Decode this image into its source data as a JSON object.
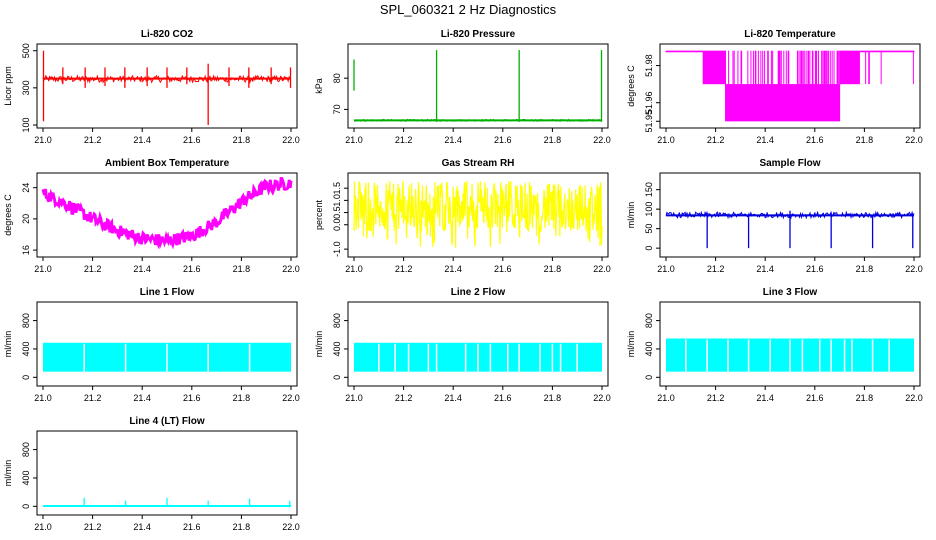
{
  "title": "SPL_060321  2 Hz Diagnostics",
  "chart_data": [
    {
      "type": "line",
      "title": "Li-820 CO2",
      "ylabel": "Licor ppm",
      "color": "#ff0000",
      "xlim": [
        21.0,
        22.0
      ],
      "ylim": [
        100,
        520
      ],
      "xticks": [
        "21.0",
        "21.2",
        "21.4",
        "21.6",
        "21.8",
        "22.0"
      ],
      "yticks": [
        {
          "v": 100,
          "label": "100"
        },
        {
          "v": 300,
          "label": "300"
        },
        {
          "v": 500,
          "label": "500"
        }
      ],
      "baseline": 350,
      "band": [
        330,
        365
      ],
      "spikes": [
        {
          "x": 21.002,
          "lo": 120,
          "hi": 500
        },
        {
          "x": 21.08,
          "lo": 320,
          "hi": 410
        },
        {
          "x": 21.17,
          "lo": 300,
          "hi": 410
        },
        {
          "x": 21.25,
          "lo": 310,
          "hi": 410
        },
        {
          "x": 21.33,
          "lo": 300,
          "hi": 410
        },
        {
          "x": 21.42,
          "lo": 310,
          "hi": 410
        },
        {
          "x": 21.5,
          "lo": 300,
          "hi": 410
        },
        {
          "x": 21.58,
          "lo": 320,
          "hi": 410
        },
        {
          "x": 21.666,
          "lo": 100,
          "hi": 430
        },
        {
          "x": 21.75,
          "lo": 310,
          "hi": 410
        },
        {
          "x": 21.83,
          "lo": 300,
          "hi": 410
        },
        {
          "x": 21.92,
          "lo": 320,
          "hi": 410
        },
        {
          "x": 21.998,
          "lo": 300,
          "hi": 410
        }
      ]
    },
    {
      "type": "line",
      "title": "Li-820 Pressure",
      "ylabel": "kPa",
      "color": "#00b000",
      "xlim": [
        21.0,
        22.0
      ],
      "ylim": [
        65,
        90
      ],
      "xticks": [
        "21.0",
        "21.2",
        "21.4",
        "21.6",
        "21.8",
        "22.0"
      ],
      "yticks": [
        {
          "v": 70,
          "label": "70"
        },
        {
          "v": 80,
          "label": "80"
        }
      ],
      "baseline": 66.5,
      "band": [
        66.2,
        66.8
      ],
      "spikes": [
        {
          "x": 21.0,
          "lo": 76,
          "hi": 86
        },
        {
          "x": 21.333,
          "lo": 66,
          "hi": 89
        },
        {
          "x": 21.666,
          "lo": 66,
          "hi": 89
        },
        {
          "x": 21.998,
          "lo": 66,
          "hi": 89
        }
      ]
    },
    {
      "type": "step-band",
      "title": "Li-820 Temperature",
      "ylabel": "degrees C",
      "color": "#ff00ff",
      "xlim": [
        21.0,
        22.0
      ],
      "ylim": [
        51.948,
        51.99
      ],
      "xticks": [
        "21.0",
        "21.2",
        "21.4",
        "21.6",
        "21.8",
        "22.0"
      ],
      "yticks": [
        {
          "v": 51.95,
          "label": "51.95"
        },
        {
          "v": 51.96,
          "label": "51.96"
        },
        {
          "v": 51.98,
          "label": "51.98"
        }
      ],
      "upper": 51.988,
      "mid": 51.97,
      "lower": 51.95,
      "high_mask": [
        [
          21.0,
          21.15
        ],
        [
          21.78,
          22.0
        ]
      ],
      "mid_mask": [
        [
          21.15,
          21.24
        ],
        [
          21.7,
          21.78
        ]
      ],
      "low_mask": [
        [
          21.24,
          21.7
        ]
      ]
    },
    {
      "type": "line",
      "title": "Ambient Box Temperature",
      "ylabel": "degrees C",
      "color": "#ff00ff",
      "xlim": [
        21.0,
        22.0
      ],
      "ylim": [
        15.5,
        25.5
      ],
      "xticks": [
        "21.0",
        "21.2",
        "21.4",
        "21.6",
        "21.8",
        "22.0"
      ],
      "yticks": [
        {
          "v": 16,
          "label": "16"
        },
        {
          "v": 20,
          "label": "20"
        },
        {
          "v": 24,
          "label": "24"
        }
      ],
      "x": [
        21.0,
        21.1,
        21.2,
        21.3,
        21.4,
        21.5,
        21.6,
        21.7,
        21.8,
        21.9,
        22.0
      ],
      "y": [
        23.3,
        21.8,
        20.0,
        18.5,
        17.5,
        17.2,
        17.8,
        19.6,
        22.2,
        24.2,
        24.6
      ],
      "halfwidth": 0.8
    },
    {
      "type": "noise-band",
      "title": "Gas Stream RH",
      "ylabel": "percent",
      "color": "#ffff00",
      "xlim": [
        21.0,
        22.0
      ],
      "ylim": [
        -1.2,
        2.0
      ],
      "xticks": [
        "21.0",
        "21.2",
        "21.4",
        "21.6",
        "21.8",
        "22.0"
      ],
      "yticks": [
        {
          "v": -1.0,
          "label": "-1.0"
        },
        {
          "v": 0.0,
          "label": "0.0"
        },
        {
          "v": 0.5,
          "label": "0.5"
        },
        {
          "v": 1.0,
          "label": "1.0"
        },
        {
          "v": 1.5,
          "label": "1.5"
        }
      ],
      "core": [
        -0.3,
        1.7
      ],
      "extreme": [
        -1.0,
        1.8
      ]
    },
    {
      "type": "line",
      "title": "Sample Flow",
      "ylabel": "ml/min",
      "color": "#0000dd",
      "xlim": [
        21.0,
        22.0
      ],
      "ylim": [
        -15,
        185
      ],
      "xticks": [
        "21.0",
        "21.2",
        "21.4",
        "21.6",
        "21.8",
        "22.0"
      ],
      "yticks": [
        {
          "v": 0,
          "label": "0"
        },
        {
          "v": 50,
          "label": "50"
        },
        {
          "v": 100,
          "label": "100"
        },
        {
          "v": 150,
          "label": "150"
        }
      ],
      "baseline": 84,
      "band": [
        78,
        92
      ],
      "spikes": [
        {
          "x": 21.166,
          "lo": 0,
          "hi": 85
        },
        {
          "x": 21.333,
          "lo": 0,
          "hi": 85
        },
        {
          "x": 21.5,
          "lo": 0,
          "hi": 96
        },
        {
          "x": 21.666,
          "lo": 0,
          "hi": 85
        },
        {
          "x": 21.833,
          "lo": 0,
          "hi": 85
        },
        {
          "x": 21.995,
          "lo": 0,
          "hi": 85
        }
      ]
    },
    {
      "type": "flow-blocks",
      "title": "Line 1 Flow",
      "ylabel": "ml/min",
      "color": "#00ffff",
      "xlim": [
        21.0,
        22.0
      ],
      "ylim": [
        -80,
        1020
      ],
      "xticks": [
        "21.0",
        "21.2",
        "21.4",
        "21.6",
        "21.8",
        "22.0"
      ],
      "yticks": [
        {
          "v": 0,
          "label": "0"
        },
        {
          "v": 400,
          "label": "400"
        },
        {
          "v": 800,
          "label": "800"
        }
      ],
      "top": 480,
      "bottom": 80,
      "gaps": [
        21.166,
        21.333,
        21.5,
        21.666,
        21.833
      ]
    },
    {
      "type": "flow-blocks",
      "title": "Line 2 Flow",
      "ylabel": "ml/min",
      "color": "#00ffff",
      "xlim": [
        21.0,
        22.0
      ],
      "ylim": [
        -80,
        1020
      ],
      "xticks": [
        "21.0",
        "21.2",
        "21.4",
        "21.6",
        "21.8",
        "22.0"
      ],
      "yticks": [
        {
          "v": 0,
          "label": "0"
        },
        {
          "v": 400,
          "label": "400"
        },
        {
          "v": 800,
          "label": "800"
        }
      ],
      "top": 480,
      "bottom": 80,
      "gaps": [
        21.1,
        21.166,
        21.22,
        21.3,
        21.333,
        21.45,
        21.5,
        21.55,
        21.62,
        21.666,
        21.75,
        21.8,
        21.833,
        21.9
      ]
    },
    {
      "type": "flow-blocks",
      "title": "Line 3 Flow",
      "ylabel": "ml/min",
      "color": "#00ffff",
      "xlim": [
        21.0,
        22.0
      ],
      "ylim": [
        -80,
        1020
      ],
      "xticks": [
        "21.0",
        "21.2",
        "21.4",
        "21.6",
        "21.8",
        "22.0"
      ],
      "yticks": [
        {
          "v": 0,
          "label": "0"
        },
        {
          "v": 400,
          "label": "400"
        },
        {
          "v": 800,
          "label": "800"
        }
      ],
      "top": 540,
      "bottom": 80,
      "gaps": [
        21.08,
        21.166,
        21.25,
        21.333,
        21.42,
        21.5,
        21.55,
        21.62,
        21.666,
        21.72,
        21.75,
        21.833,
        21.9
      ]
    },
    {
      "type": "line",
      "title": "Line 4 (LT) Flow",
      "ylabel": "ml/min",
      "color": "#00ffff",
      "xlim": [
        21.0,
        22.0
      ],
      "ylim": [
        -80,
        1020
      ],
      "xticks": [
        "21.0",
        "21.2",
        "21.4",
        "21.6",
        "21.8",
        "22.0"
      ],
      "yticks": [
        {
          "v": 0,
          "label": "0"
        },
        {
          "v": 400,
          "label": "400"
        },
        {
          "v": 800,
          "label": "800"
        }
      ],
      "baseline": 5,
      "band": [
        0,
        10
      ],
      "spikes": [
        {
          "x": 21.166,
          "lo": 0,
          "hi": 120
        },
        {
          "x": 21.333,
          "lo": 0,
          "hi": 80
        },
        {
          "x": 21.5,
          "lo": 0,
          "hi": 120
        },
        {
          "x": 21.666,
          "lo": 0,
          "hi": 80
        },
        {
          "x": 21.833,
          "lo": 0,
          "hi": 110
        },
        {
          "x": 21.995,
          "lo": 0,
          "hi": 80
        }
      ]
    }
  ]
}
